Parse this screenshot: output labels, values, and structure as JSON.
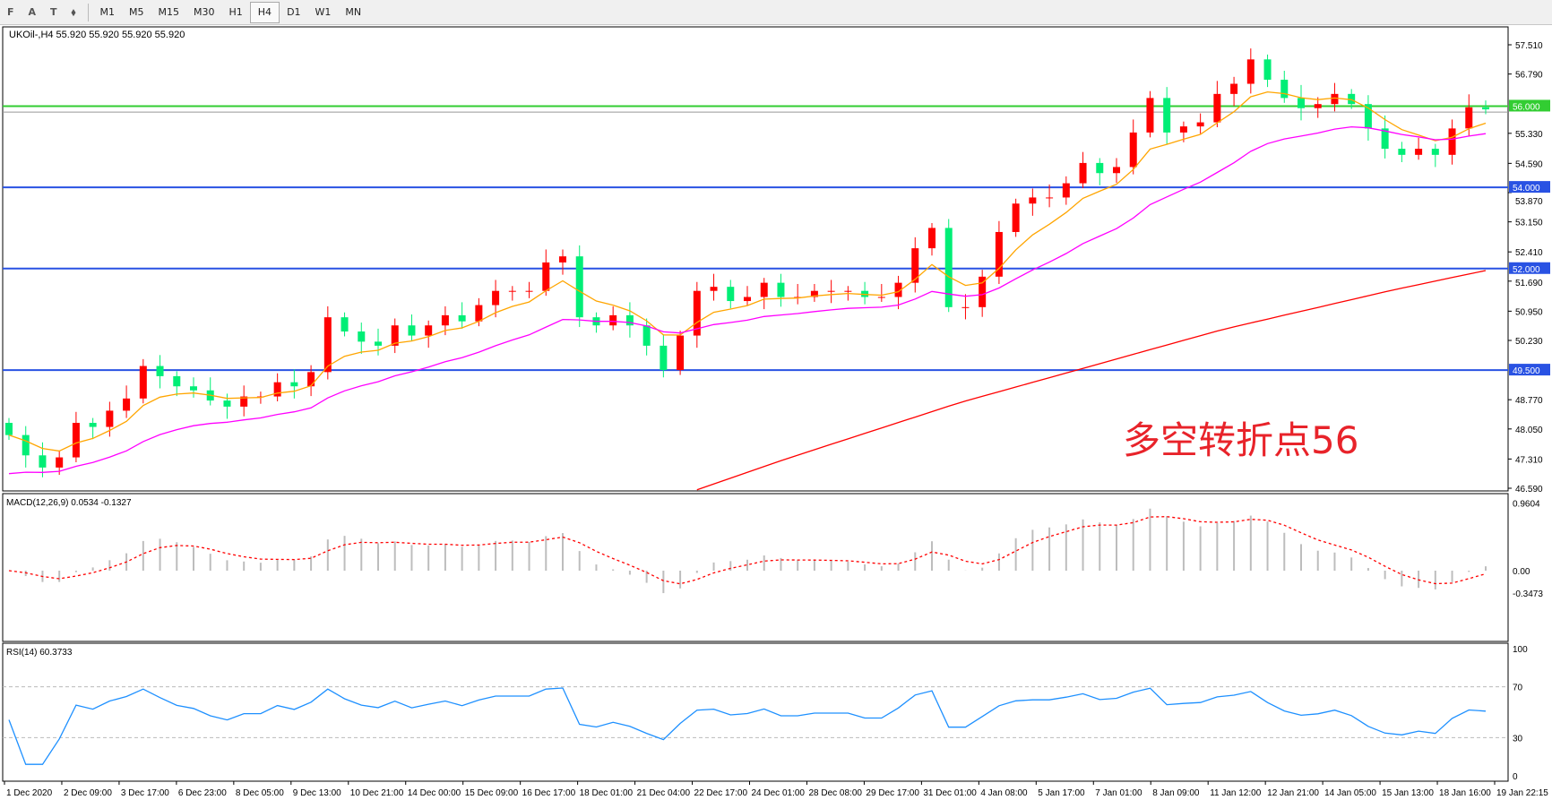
{
  "toolbar": {
    "tools": [
      "F",
      "A",
      "T",
      "⬧"
    ],
    "timeframes": [
      "M1",
      "M5",
      "M15",
      "M30",
      "H1",
      "H4",
      "D1",
      "W1",
      "MN"
    ],
    "active": "H4"
  },
  "chart": {
    "symbol_line": "UKOil-,H4  55.920 55.920 55.920 55.920",
    "bid": 55.92,
    "annotation": "多空转折点56",
    "price_axis": [
      "57.510",
      "56.790",
      "55.330",
      "54.590",
      "53.870",
      "53.150",
      "52.410",
      "51.690",
      "50.950",
      "50.230",
      "48.770",
      "48.050",
      "47.310",
      "46.590"
    ],
    "levels": [
      {
        "price": 56.0,
        "label": "56.000",
        "color": "#32cd32"
      },
      {
        "price": 54.0,
        "label": "54.000",
        "color": "#2952e3"
      },
      {
        "price": 52.0,
        "label": "52.000",
        "color": "#2952e3"
      },
      {
        "price": 49.5,
        "label": "49.500",
        "color": "#2952e3"
      }
    ],
    "colors": {
      "bull": "#ff0000",
      "bear": "#00ee76",
      "ma_fast": "#ffa500",
      "ma_mid": "#ff00ff",
      "ma_slow": "#ff0000"
    },
    "closes": [
      47.9,
      47.4,
      47.1,
      47.35,
      48.2,
      48.1,
      48.5,
      48.8,
      49.6,
      49.35,
      49.1,
      49.0,
      48.75,
      48.6,
      48.85,
      48.85,
      49.2,
      49.1,
      49.45,
      50.8,
      50.45,
      50.2,
      50.1,
      50.6,
      50.35,
      50.6,
      50.85,
      50.7,
      51.1,
      51.45,
      51.45,
      51.45,
      52.15,
      52.3,
      50.8,
      50.6,
      50.85,
      50.6,
      50.1,
      49.5,
      50.35,
      51.45,
      51.55,
      51.2,
      51.3,
      51.65,
      51.3,
      51.3,
      51.45,
      51.45,
      51.45,
      51.3,
      51.3,
      51.65,
      52.5,
      53.0,
      51.05,
      51.05,
      51.8,
      52.9,
      53.6,
      53.75,
      53.75,
      54.1,
      54.6,
      54.35,
      54.5,
      55.35,
      56.2,
      55.35,
      55.5,
      55.6,
      56.3,
      56.55,
      57.15,
      56.65,
      56.2,
      55.95,
      56.05,
      56.3,
      56.05,
      55.45,
      54.95,
      54.8,
      54.95,
      54.8,
      55.45,
      55.97,
      55.92
    ],
    "ma_slow_values": [
      46.55,
      47.3,
      48.0,
      48.7,
      49.3,
      49.9,
      50.5,
      51.0,
      51.5,
      51.95
    ]
  },
  "macd": {
    "label": "MACD(12,26,9) 0.0534 -0.1327",
    "axis": [
      "0.9604",
      "0.00",
      "-0.3473"
    ],
    "max": 0.9604,
    "min": -0.3473
  },
  "rsi": {
    "label": "RSI(14) 60.3733",
    "axis": [
      "100",
      "70",
      "30",
      "0"
    ]
  },
  "time_axis": [
    "1 Dec 2020",
    "2 Dec 09:00",
    "3 Dec 17:00",
    "6 Dec 23:00",
    "8 Dec 05:00",
    "9 Dec 13:00",
    "10 Dec 21:00",
    "14 Dec 00:00",
    "15 Dec 09:00",
    "16 Dec 17:00",
    "18 Dec 01:00",
    "21 Dec 04:00",
    "22 Dec 17:00",
    "24 Dec 01:00",
    "28 Dec 08:00",
    "29 Dec 17:00",
    "31 Dec 01:00",
    "4 Jan 08:00",
    "5 Jan 17:00",
    "7 Jan 01:00",
    "8 Jan 09:00",
    "11 Jan 12:00",
    "12 Jan 21:00",
    "14 Jan 05:00",
    "15 Jan 13:00",
    "18 Jan 16:00",
    "19 Jan 22:15"
  ]
}
